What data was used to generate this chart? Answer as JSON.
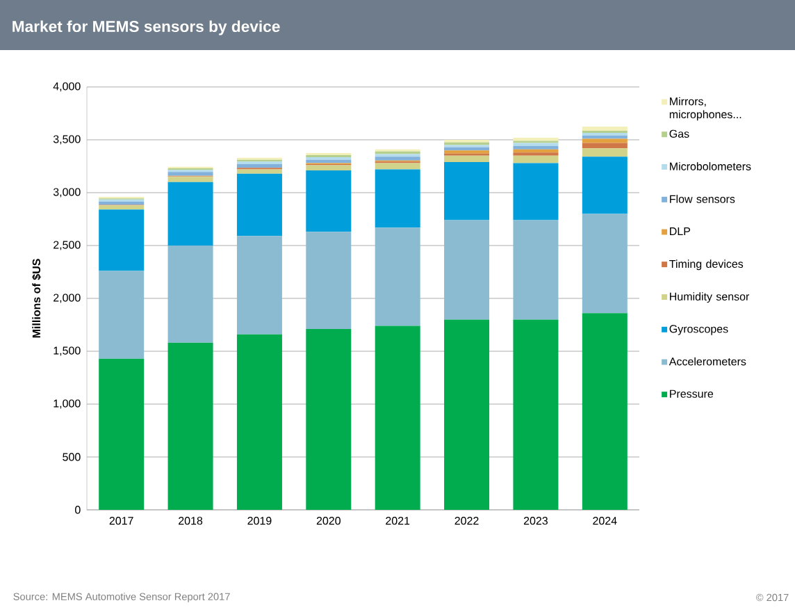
{
  "chart_data": {
    "type": "bar",
    "stacked": true,
    "title": "Market for MEMS sensors by device",
    "ylabel": "Millions  of $US",
    "categories": [
      "2017",
      "2018",
      "2019",
      "2020",
      "2021",
      "2022",
      "2023",
      "2024"
    ],
    "series": [
      {
        "name": "Pressure",
        "color": "#00ac4e",
        "values": [
          1430,
          1580,
          1660,
          1710,
          1740,
          1800,
          1800,
          1860
        ]
      },
      {
        "name": "Accelerometers",
        "color": "#8abbd0",
        "values": [
          830,
          920,
          930,
          920,
          930,
          940,
          940,
          940
        ]
      },
      {
        "name": "Gyroscopes",
        "color": "#009edb",
        "values": [
          580,
          600,
          590,
          580,
          550,
          550,
          540,
          540
        ]
      },
      {
        "name": "Humidity sensor",
        "color": "#d2d38a",
        "values": [
          40,
          50,
          40,
          50,
          60,
          60,
          70,
          80
        ]
      },
      {
        "name": "Timing devices",
        "color": "#cf7747",
        "values": [
          5,
          5,
          15,
          10,
          15,
          20,
          30,
          50
        ]
      },
      {
        "name": "DLP",
        "color": "#e3a23f",
        "values": [
          0,
          5,
          null,
          10,
          10,
          30,
          30,
          40
        ]
      },
      {
        "name": "Flow sensors",
        "color": "#82b1dc",
        "values": [
          30,
          35,
          35,
          30,
          35,
          30,
          30,
          30
        ]
      },
      {
        "name": "Microbolometers",
        "color": "#b5dced",
        "values": [
          20,
          20,
          25,
          25,
          25,
          20,
          30,
          25
        ]
      },
      {
        "name": "Gas",
        "color": "#b5cf8e",
        "values": [
          10,
          15,
          15,
          20,
          25,
          25,
          20,
          20
        ]
      },
      {
        "name": "Mirrors, microphones...",
        "color": "#f2f0b8",
        "values": [
          15,
          15,
          20,
          20,
          20,
          25,
          30,
          40
        ]
      }
    ],
    "ylim": [
      0,
      4000
    ],
    "yticks": [
      0,
      500,
      {
        "value": 1000,
        "label": "1,000"
      },
      {
        "value": 1500,
        "label": "1,500"
      },
      {
        "value": 2000,
        "label": "2,000"
      },
      {
        "value": 2500,
        "label": "2,500"
      },
      {
        "value": 3000,
        "label": "3,000"
      },
      {
        "value": 3500,
        "label": "3,500"
      },
      {
        "value": 4000,
        "label": "4,000"
      }
    ],
    "grid": "y",
    "legend": "right",
    "annotations": [
      "Source: MEMS Automotive Sensor Report 2017",
      "© 2017"
    ]
  }
}
